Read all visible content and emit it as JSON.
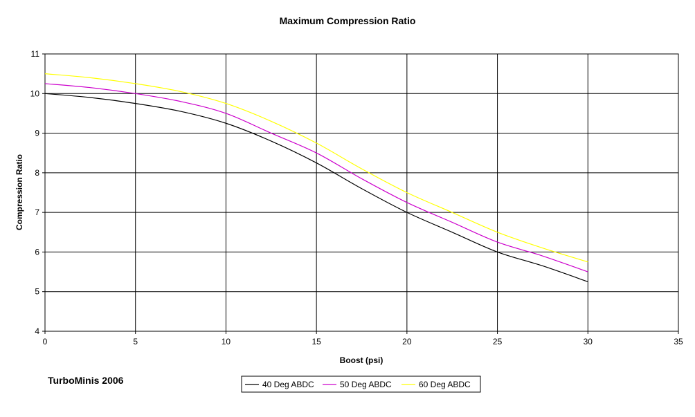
{
  "chart_data": {
    "type": "line",
    "title": "Maximum Compression Ratio",
    "xlabel": "Boost (psi)",
    "ylabel": "Compression Ratio",
    "xlim": [
      0,
      35
    ],
    "ylim": [
      4,
      11
    ],
    "x_ticks": [
      "0",
      "5",
      "10",
      "15",
      "20",
      "25",
      "30",
      "35"
    ],
    "y_ticks": [
      "4",
      "5",
      "6",
      "7",
      "8",
      "9",
      "10",
      "11"
    ],
    "grid": true,
    "legend_position": "bottom-center",
    "series": [
      {
        "name": "40 Deg ABDC",
        "color": "#000000",
        "x": [
          0,
          2.5,
          5,
          7.5,
          10,
          12.5,
          15,
          17.5,
          20,
          22.5,
          25,
          27.5,
          30
        ],
        "y": [
          10.0,
          9.9,
          9.75,
          9.55,
          9.25,
          8.8,
          8.25,
          7.6,
          7.0,
          6.5,
          6.0,
          5.65,
          5.25
        ]
      },
      {
        "name": "50 Deg ABDC",
        "color": "#cc00cc",
        "x": [
          0,
          2.5,
          5,
          7.5,
          10,
          12.5,
          15,
          17.5,
          20,
          22.5,
          25,
          27.5,
          30
        ],
        "y": [
          10.25,
          10.15,
          10.0,
          9.8,
          9.5,
          9.0,
          8.5,
          7.85,
          7.25,
          6.75,
          6.25,
          5.9,
          5.5
        ]
      },
      {
        "name": "60 Deg ABDC",
        "color": "#ffff00",
        "x": [
          0,
          2.5,
          5,
          7.5,
          10,
          12.5,
          15,
          17.5,
          20,
          22.5,
          25,
          27.5,
          30
        ],
        "y": [
          10.5,
          10.4,
          10.25,
          10.05,
          9.75,
          9.3,
          8.75,
          8.1,
          7.5,
          7.0,
          6.5,
          6.1,
          5.75
        ]
      }
    ]
  },
  "credit": "TurboMinis 2006"
}
